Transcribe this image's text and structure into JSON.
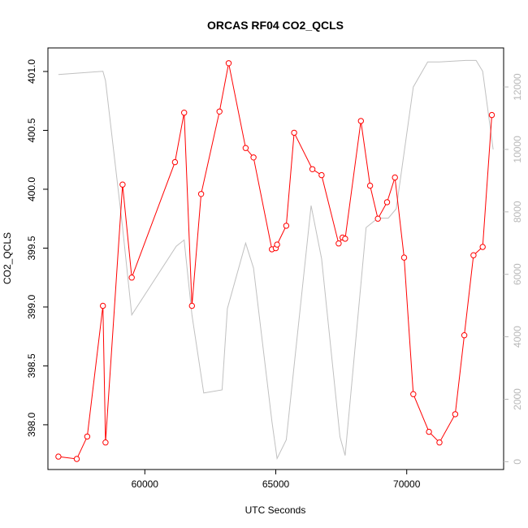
{
  "chart_data": {
    "type": "line",
    "title": "ORCAS RF04 CO2_QCLS",
    "xlabel": "UTC Seconds",
    "ylabel": "CO2_QCLS",
    "xlim": [
      56300,
      73700
    ],
    "ylim": [
      397.62,
      401.2
    ],
    "y2lim": [
      -250,
      13250
    ],
    "xticks": [
      60000,
      65000,
      70000
    ],
    "yticks": [
      398.0,
      398.5,
      399.0,
      399.5,
      400.0,
      400.5,
      401.0
    ],
    "ytick_labels": [
      "398.0",
      "398.5",
      "399.0",
      "399.5",
      "400.0",
      "400.5",
      "401.0"
    ],
    "y2ticks": [
      0,
      2000,
      4000,
      6000,
      8000,
      10000,
      12000
    ],
    "series": [
      {
        "axis": "left",
        "color": "#ff0000",
        "marker": "open-circle",
        "x": [
          56700,
          57400,
          57800,
          58400,
          58500,
          59150,
          59500,
          61150,
          61500,
          61800,
          62150,
          62850,
          63200,
          63850,
          64150,
          64850,
          65000,
          65050,
          65400,
          65700,
          66400,
          66750,
          67400,
          67550,
          67650,
          68250,
          68600,
          68900,
          69250,
          69550,
          69900,
          70250,
          70850,
          71250,
          71850,
          72200,
          72550,
          72900,
          73250
        ],
        "y": [
          397.73,
          397.71,
          397.9,
          399.01,
          397.85,
          400.04,
          399.25,
          400.23,
          400.65,
          399.01,
          399.96,
          400.66,
          401.07,
          400.35,
          400.27,
          399.49,
          399.5,
          399.53,
          399.69,
          400.48,
          400.17,
          400.12,
          399.54,
          399.59,
          399.58,
          400.58,
          400.03,
          399.75,
          399.89,
          400.1,
          399.42,
          398.26,
          397.94,
          397.85,
          398.09,
          398.76,
          399.44,
          399.51,
          400.63
        ]
      },
      {
        "axis": "right",
        "color": "#c0c0c0",
        "x": [
          56700,
          58400,
          58500,
          59150,
          59500,
          61200,
          61500,
          61800,
          62250,
          62950,
          63150,
          63850,
          64150,
          64850,
          65050,
          65400,
          66350,
          66750,
          67450,
          67650,
          68450,
          68900,
          69300,
          69600,
          70250,
          70800,
          71250,
          72250,
          72650,
          72900,
          73300
        ],
        "y": [
          12400,
          12500,
          12200,
          7500,
          4700,
          6900,
          7100,
          4700,
          2200,
          2300,
          4900,
          7000,
          6200,
          1300,
          100,
          700,
          8200,
          6500,
          800,
          200,
          7500,
          7800,
          7800,
          8100,
          12000,
          12800,
          12800,
          12850,
          12850,
          12500,
          10000
        ]
      }
    ]
  }
}
